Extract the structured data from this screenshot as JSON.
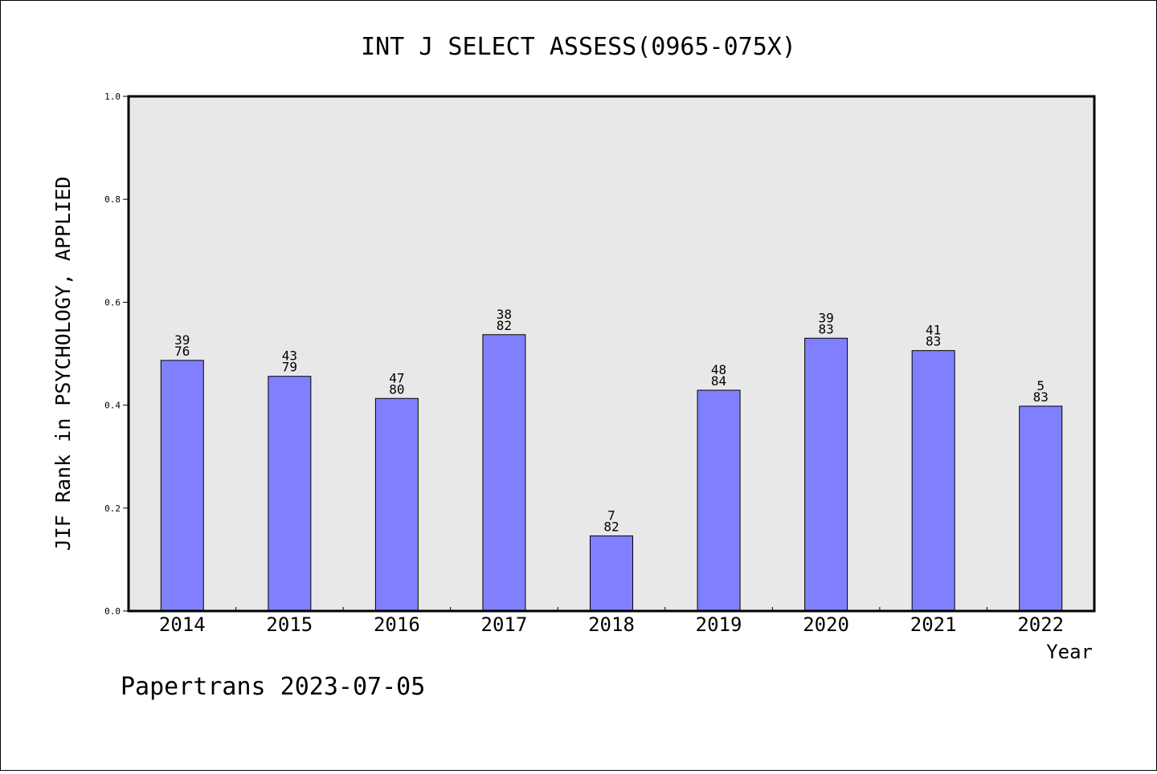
{
  "chart_data": {
    "type": "bar",
    "title": "INT J SELECT ASSESS(0965-075X)",
    "xlabel": "Year",
    "ylabel": "JIF Rank in PSYCHOLOGY, APPLIED",
    "ylim": [
      0,
      1.0
    ],
    "yticks": [
      "0.0",
      "0.2",
      "0.4",
      "0.6",
      "0.8",
      "1.0"
    ],
    "categories": [
      "2014",
      "2015",
      "2016",
      "2017",
      "2018",
      "2019",
      "2020",
      "2021",
      "2022"
    ],
    "values": [
      0.487,
      0.456,
      0.413,
      0.537,
      0.146,
      0.429,
      0.53,
      0.506,
      0.398
    ],
    "rank": [
      "39",
      "43",
      "47",
      "38",
      "7",
      "48",
      "39",
      "41",
      "5"
    ],
    "total": [
      "76",
      "79",
      "80",
      "82",
      "82",
      "84",
      "83",
      "83",
      "83"
    ],
    "grid": false,
    "colors": {
      "bar": "#8080ff",
      "plot_bg": "#e8e8e8"
    }
  },
  "footer": "Papertrans 2023-07-05"
}
